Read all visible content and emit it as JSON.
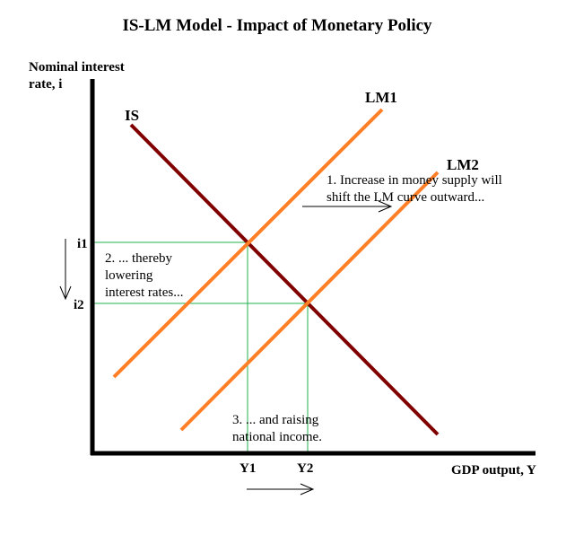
{
  "title": "IS-LM Model - Impact of Monetary Policy",
  "axes": {
    "y_label_line1": "Nominal interest",
    "y_label_line2": "rate, i",
    "x_label": "GDP output, Y"
  },
  "curves": {
    "is": {
      "label": "IS",
      "color": "#800000"
    },
    "lm1": {
      "label": "LM1",
      "color": "#ff7f27"
    },
    "lm2": {
      "label": "LM2",
      "color": "#ff7f27"
    }
  },
  "guide_color": "#22b14c",
  "ticks": {
    "i1": "i1",
    "i2": "i2",
    "y1": "Y1",
    "y2": "Y2"
  },
  "annotations": {
    "step1_line1": "1. Increase in money supply will",
    "step1_line2": "shift the LM curve outward...",
    "step2_line1": "2. ... thereby",
    "step2_line2": "lowering",
    "step2_line3": "interest rates...",
    "step3_line1": "3. ... and raising",
    "step3_line2": "national income."
  }
}
